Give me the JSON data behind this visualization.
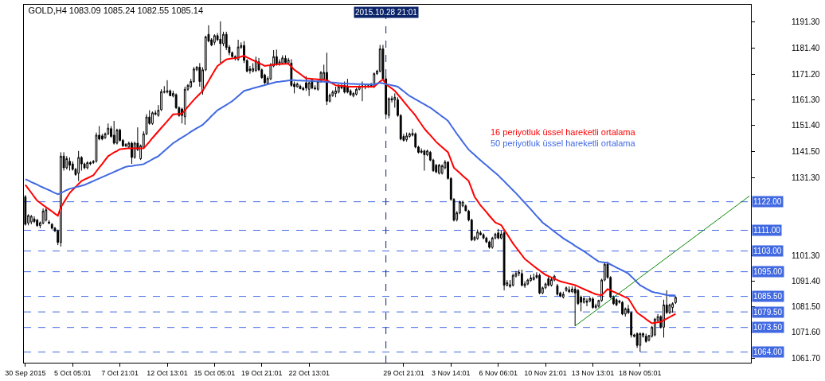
{
  "chart_data": {
    "type": "candlestick",
    "title": "GOLD,H4 1083.09 1085.24 1082.55 1085.14",
    "color": "#000000",
    "grid": false,
    "categories": [
      "30 Sep 2015",
      null,
      null,
      null,
      null,
      null,
      null,
      null,
      null,
      null,
      null,
      null,
      null,
      null,
      null,
      null,
      "5 Oct 05:01",
      null,
      null,
      null,
      null,
      null,
      null,
      null,
      null,
      null,
      null,
      null,
      null,
      null,
      null,
      null,
      "7 Oct 21:01",
      null,
      null,
      null,
      null,
      null,
      null,
      null,
      null,
      null,
      null,
      null,
      null,
      null,
      null,
      null,
      "12 Oct 13:01",
      null,
      null,
      null,
      null,
      null,
      null,
      null,
      null,
      null,
      null,
      null,
      null,
      null,
      null,
      null,
      "15 Oct 05:01",
      null,
      null,
      null,
      null,
      null,
      null,
      null,
      null,
      null,
      null,
      null,
      null,
      null,
      null,
      null,
      "19 Oct 21:01",
      null,
      null,
      null,
      null,
      null,
      null,
      null,
      null,
      null,
      null,
      null,
      null,
      null,
      null,
      null,
      "22 Oct 13:01",
      null,
      null,
      null,
      null,
      null,
      null,
      null,
      null,
      null,
      null,
      null,
      null,
      null,
      null,
      null,
      null,
      null,
      null,
      null,
      null,
      null,
      null,
      null,
      null,
      null,
      "2015.10.28 21:01",
      null,
      null,
      null,
      null,
      null,
      "29 Oct 21:01",
      null,
      null,
      null,
      null,
      null,
      null,
      null,
      null,
      null,
      null,
      null,
      null,
      null,
      null,
      null,
      "3 Nov 14:01",
      null,
      null,
      null,
      null,
      null,
      null,
      null,
      null,
      null,
      null,
      null,
      null,
      null,
      null,
      null,
      "6 Nov 06:01",
      null,
      null,
      null,
      null,
      null,
      null,
      null,
      null,
      null,
      null,
      null,
      null,
      null,
      null,
      null,
      "10 Nov 21:01",
      null,
      null,
      null,
      null,
      null,
      null,
      null,
      null,
      null,
      null,
      null,
      null,
      null,
      null,
      null,
      "13 Nov 13:01",
      null,
      null,
      null,
      null,
      null,
      null,
      null,
      null,
      null,
      null,
      null,
      null,
      null,
      null,
      null,
      "18 Nov 05:01",
      null,
      null,
      null,
      null,
      null,
      null,
      null,
      null,
      null,
      null,
      null,
      null,
      null,
      null,
      null,
      null,
      null,
      null,
      null,
      null,
      null,
      null,
      null,
      null,
      null,
      null,
      null,
      null,
      null,
      null,
      null,
      null,
      null,
      null,
      null,
      null,
      null
    ],
    "ohlc": [
      [
        1123.9,
        1124.6,
        1112.8,
        1113.3
      ],
      [
        1113.8,
        1117.2,
        1112.9,
        1116.7
      ],
      [
        1114.2,
        1116.9,
        1113.3,
        1116.4
      ],
      [
        1115.4,
        1116.4,
        1113.8,
        1114.4
      ],
      [
        1114.9,
        1115.4,
        1112.3,
        1112.8
      ],
      [
        1112.8,
        1114.4,
        1111.8,
        1113.9
      ],
      [
        1113.8,
        1119.4,
        1113.3,
        1118.4
      ],
      [
        1114.9,
        1119.9,
        1114.4,
        1118.9
      ],
      [
        1114.2,
        1114.9,
        1113.3,
        1113.8
      ],
      [
        1113.3,
        1113.8,
        1111.3,
        1111.8
      ],
      [
        1111.8,
        1112.3,
        1110.3,
        1110.8
      ],
      [
        1110.8,
        1111.3,
        1105.3,
        1106.3
      ],
      [
        1106.3,
        1141.1,
        1104.7,
        1139.6
      ],
      [
        1139.6,
        1141.1,
        1134.0,
        1135.1
      ],
      [
        1135.1,
        1139.6,
        1134.5,
        1138.6
      ],
      [
        1137.6,
        1139.1,
        1134.0,
        1136.1
      ],
      [
        1136.6,
        1137.6,
        1134.0,
        1134.5
      ],
      [
        1134.5,
        1135.1,
        1132.0,
        1132.5
      ],
      [
        1133.0,
        1141.6,
        1130.0,
        1139.1
      ],
      [
        1139.1,
        1139.6,
        1134.0,
        1136.6
      ],
      [
        1136.6,
        1137.1,
        1134.5,
        1135.1
      ],
      [
        1135.1,
        1137.6,
        1134.5,
        1137.1
      ],
      [
        1137.1,
        1137.6,
        1136.1,
        1136.6
      ],
      [
        1137.1,
        1138.1,
        1136.6,
        1137.6
      ],
      [
        1137.6,
        1148.7,
        1137.1,
        1147.7
      ],
      [
        1147.7,
        1151.2,
        1145.7,
        1146.2
      ],
      [
        1147.4,
        1148.2,
        1145.7,
        1146.2
      ],
      [
        1146.7,
        1148.7,
        1146.2,
        1148.2
      ],
      [
        1148.2,
        1152.2,
        1147.7,
        1150.4
      ],
      [
        1150.2,
        1151.2,
        1146.7,
        1147.2
      ],
      [
        1147.7,
        1153.2,
        1144.1,
        1144.6
      ],
      [
        1144.6,
        1150.2,
        1144.1,
        1149.7
      ],
      [
        1149.7,
        1150.2,
        1145.2,
        1145.7
      ],
      [
        1145.7,
        1146.2,
        1143.1,
        1143.6
      ],
      [
        1144.1,
        1144.6,
        1143.1,
        1143.6
      ],
      [
        1143.1,
        1145.2,
        1142.6,
        1144.6
      ],
      [
        1144.6,
        1145.2,
        1136.6,
        1139.1
      ],
      [
        1139.1,
        1145.2,
        1138.6,
        1144.6
      ],
      [
        1144.6,
        1150.7,
        1141.6,
        1142.1
      ],
      [
        1138.6,
        1144.1,
        1138.1,
        1143.6
      ],
      [
        1143.1,
        1149.2,
        1142.6,
        1148.2
      ],
      [
        1148.2,
        1155.8,
        1147.7,
        1154.7
      ],
      [
        1154.7,
        1157.3,
        1151.7,
        1152.2
      ],
      [
        1152.2,
        1156.8,
        1151.7,
        1156.3
      ],
      [
        1156.3,
        1157.3,
        1155.3,
        1155.8
      ],
      [
        1155.3,
        1159.3,
        1154.8,
        1157.3
      ],
      [
        1157.5,
        1165.4,
        1157.0,
        1164.5
      ],
      [
        1164.5,
        1166.6,
        1163.8,
        1164.3
      ],
      [
        1164.3,
        1168.9,
        1163.8,
        1164.8
      ],
      [
        1164.8,
        1165.3,
        1162.8,
        1162.9
      ],
      [
        1162.8,
        1164.8,
        1162.3,
        1163.8
      ],
      [
        1163.3,
        1163.8,
        1157.8,
        1158.3
      ],
      [
        1158.3,
        1158.8,
        1154.8,
        1155.3
      ],
      [
        1157.8,
        1158.3,
        1152.2,
        1155.3
      ],
      [
        1154.8,
        1166.4,
        1151.7,
        1165.4
      ],
      [
        1165.4,
        1167.4,
        1164.8,
        1166.9
      ],
      [
        1166.4,
        1169.4,
        1165.9,
        1168.4
      ],
      [
        1168.4,
        1174.0,
        1167.9,
        1173.2
      ],
      [
        1172.9,
        1174.4,
        1172.4,
        1173.9
      ],
      [
        1173.9,
        1175.5,
        1166.4,
        1168.4
      ],
      [
        1164.8,
        1173.9,
        1163.3,
        1172.9
      ],
      [
        1172.9,
        1186.1,
        1172.4,
        1185.6
      ],
      [
        1186.6,
        1190.1,
        1183.5,
        1184.0
      ],
      [
        1184.5,
        1185.1,
        1182.0,
        1182.5
      ],
      [
        1183.5,
        1186.6,
        1182.5,
        1186.1
      ],
      [
        1186.1,
        1187.1,
        1184.0,
        1184.5
      ],
      [
        1184.7,
        1191.6,
        1175.5,
        1183.0
      ],
      [
        1183.0,
        1187.6,
        1182.0,
        1186.6
      ],
      [
        1186.6,
        1187.6,
        1180.5,
        1181.5
      ],
      [
        1181.7,
        1182.5,
        1178.5,
        1179.5
      ],
      [
        1179.5,
        1180.0,
        1177.5,
        1178.0
      ],
      [
        1178.0,
        1178.5,
        1176.5,
        1177.2
      ],
      [
        1176.9,
        1184.5,
        1176.4,
        1181.7
      ],
      [
        1181.5,
        1183.5,
        1181.0,
        1182.3
      ],
      [
        1182.3,
        1184.0,
        1175.5,
        1176.5
      ],
      [
        1176.5,
        1177.0,
        1171.9,
        1172.4
      ],
      [
        1173.2,
        1174.4,
        1171.4,
        1172.6
      ],
      [
        1172.4,
        1175.5,
        1171.9,
        1173.4
      ],
      [
        1172.6,
        1178.0,
        1172.1,
        1176.5
      ],
      [
        1176.0,
        1177.5,
        1172.4,
        1172.9
      ],
      [
        1172.9,
        1173.4,
        1169.4,
        1169.9
      ],
      [
        1170.9,
        1171.4,
        1167.4,
        1167.9
      ],
      [
        1167.6,
        1170.4,
        1167.2,
        1169.6
      ],
      [
        1169.4,
        1175.5,
        1168.9,
        1175.0
      ],
      [
        1174.4,
        1180.5,
        1173.9,
        1178.0
      ],
      [
        1178.0,
        1180.7,
        1174.5,
        1175.0
      ],
      [
        1175.0,
        1177.0,
        1174.5,
        1176.0
      ],
      [
        1175.5,
        1178.5,
        1175.0,
        1177.5
      ],
      [
        1177.3,
        1178.5,
        1175.0,
        1175.7
      ],
      [
        1175.5,
        1177.5,
        1175.0,
        1176.7
      ],
      [
        1175.5,
        1177.0,
        1166.4,
        1166.9
      ],
      [
        1167.4,
        1168.4,
        1163.8,
        1166.4
      ],
      [
        1166.4,
        1168.0,
        1166.0,
        1167.4
      ],
      [
        1166.6,
        1167.2,
        1165.4,
        1165.6
      ],
      [
        1165.8,
        1166.4,
        1164.8,
        1165.3
      ],
      [
        1167.9,
        1170.4,
        1164.8,
        1165.9
      ],
      [
        1165.4,
        1168.4,
        1162.8,
        1167.9
      ],
      [
        1168.9,
        1169.4,
        1165.4,
        1165.9
      ],
      [
        1165.9,
        1166.9,
        1165.1,
        1165.6
      ],
      [
        1165.4,
        1168.9,
        1164.8,
        1168.4
      ],
      [
        1168.4,
        1172.4,
        1167.9,
        1171.9
      ],
      [
        1169.4,
        1174.9,
        1168.9,
        1171.9
      ],
      [
        1171.9,
        1179.5,
        1159.3,
        1160.8
      ],
      [
        1160.8,
        1163.8,
        1160.3,
        1163.1
      ],
      [
        1163.0,
        1165.0,
        1162.5,
        1164.3
      ],
      [
        1163.8,
        1166.4,
        1162.3,
        1164.8
      ],
      [
        1164.3,
        1167.4,
        1163.8,
        1166.4
      ],
      [
        1166.4,
        1167.9,
        1165.4,
        1165.9
      ],
      [
        1166.9,
        1168.4,
        1163.8,
        1164.3
      ],
      [
        1166.4,
        1169.4,
        1163.8,
        1164.3
      ],
      [
        1164.8,
        1165.4,
        1162.8,
        1163.3
      ],
      [
        1162.8,
        1164.3,
        1162.3,
        1163.8
      ],
      [
        1163.5,
        1165.9,
        1163.0,
        1165.4
      ],
      [
        1165.4,
        1166.9,
        1165.0,
        1166.4
      ],
      [
        1166.4,
        1168.4,
        1160.8,
        1166.7
      ],
      [
        1166.7,
        1167.4,
        1165.4,
        1166.2
      ],
      [
        1166.4,
        1167.4,
        1165.9,
        1166.7
      ],
      [
        1166.6,
        1167.9,
        1166.0,
        1166.9
      ],
      [
        1166.4,
        1171.9,
        1165.9,
        1171.4
      ],
      [
        1171.4,
        1172.9,
        1170.9,
        1172.4
      ],
      [
        1172.4,
        1182.5,
        1171.9,
        1181.0
      ],
      [
        1181.0,
        1182.5,
        1168.9,
        1169.4
      ],
      [
        1169.4,
        1170.4,
        1155.3,
        1155.8
      ],
      [
        1155.3,
        1162.3,
        1154.2,
        1161.8
      ],
      [
        1161.8,
        1162.8,
        1160.3,
        1161.3
      ],
      [
        1161.3,
        1163.8,
        1158.3,
        1162.3
      ],
      [
        1161.3,
        1162.3,
        1154.8,
        1155.3
      ],
      [
        1155.3,
        1155.8,
        1145.7,
        1146.2
      ],
      [
        1147.2,
        1148.2,
        1145.2,
        1145.7
      ],
      [
        1146.0,
        1148.7,
        1145.2,
        1147.4
      ],
      [
        1147.2,
        1148.7,
        1146.7,
        1148.2
      ],
      [
        1147.7,
        1150.2,
        1147.2,
        1148.4
      ],
      [
        1148.2,
        1148.7,
        1142.6,
        1143.1
      ],
      [
        1143.1,
        1143.6,
        1140.6,
        1141.1
      ],
      [
        1141.6,
        1142.6,
        1140.6,
        1141.1
      ],
      [
        1141.6,
        1142.1,
        1134.0,
        1140.1
      ],
      [
        1140.1,
        1142.1,
        1139.6,
        1141.6
      ],
      [
        1141.1,
        1141.6,
        1137.6,
        1138.1
      ],
      [
        1138.1,
        1138.6,
        1133.5,
        1134.0
      ],
      [
        1136.1,
        1136.6,
        1133.0,
        1133.5
      ],
      [
        1133.0,
        1136.6,
        1132.5,
        1136.1
      ],
      [
        1133.0,
        1136.4,
        1132.5,
        1135.9
      ],
      [
        1135.1,
        1138.1,
        1134.5,
        1137.3
      ],
      [
        1137.3,
        1137.6,
        1130.5,
        1131.0
      ],
      [
        1131.0,
        1131.5,
        1122.4,
        1122.9
      ],
      [
        1122.9,
        1123.4,
        1114.4,
        1114.9
      ],
      [
        1115.1,
        1118.4,
        1114.4,
        1117.7
      ],
      [
        1117.7,
        1122.4,
        1117.2,
        1121.9
      ],
      [
        1120.4,
        1122.4,
        1119.9,
        1121.9
      ],
      [
        1120.4,
        1120.9,
        1118.4,
        1118.5
      ],
      [
        1118.4,
        1118.9,
        1114.4,
        1115.0
      ],
      [
        1115.0,
        1115.4,
        1106.8,
        1107.3
      ],
      [
        1107.3,
        1108.8,
        1106.8,
        1108.3
      ],
      [
        1107.8,
        1111.3,
        1107.3,
        1110.3
      ],
      [
        1110.0,
        1110.8,
        1109.0,
        1109.3
      ],
      [
        1109.3,
        1109.8,
        1107.5,
        1108.0
      ],
      [
        1108.0,
        1108.5,
        1106.0,
        1106.5
      ],
      [
        1106.5,
        1107.0,
        1103.9,
        1104.4
      ],
      [
        1104.4,
        1108.5,
        1103.9,
        1108.0
      ],
      [
        1108.0,
        1110.0,
        1107.5,
        1109.5
      ],
      [
        1110.0,
        1111.5,
        1107.5,
        1108.0
      ],
      [
        1108.0,
        1110.8,
        1107.5,
        1109.5
      ],
      [
        1110.0,
        1111.0,
        1087.8,
        1089.8
      ],
      [
        1089.8,
        1091.8,
        1089.3,
        1090.8
      ],
      [
        1089.3,
        1091.8,
        1088.8,
        1090.0
      ],
      [
        1089.8,
        1094.3,
        1089.3,
        1093.6
      ],
      [
        1093.3,
        1095.3,
        1092.8,
        1094.3
      ],
      [
        1094.3,
        1095.8,
        1093.3,
        1094.8
      ],
      [
        1094.3,
        1095.8,
        1089.3,
        1089.8
      ],
      [
        1089.6,
        1091.3,
        1088.8,
        1090.3
      ],
      [
        1090.3,
        1092.3,
        1089.8,
        1091.8
      ],
      [
        1091.6,
        1093.8,
        1091.1,
        1092.6
      ],
      [
        1092.0,
        1094.3,
        1091.6,
        1092.8
      ],
      [
        1093.6,
        1094.8,
        1092.3,
        1092.8
      ],
      [
        1093.6,
        1094.3,
        1086.3,
        1086.8
      ],
      [
        1086.8,
        1089.3,
        1086.3,
        1088.8
      ],
      [
        1088.8,
        1090.8,
        1088.3,
        1090.3
      ],
      [
        1092.3,
        1093.3,
        1089.3,
        1089.8
      ],
      [
        1089.8,
        1092.8,
        1089.3,
        1092.0
      ],
      [
        1091.8,
        1093.8,
        1091.3,
        1093.3
      ],
      [
        1089.6,
        1090.3,
        1085.8,
        1086.3
      ],
      [
        1086.8,
        1087.3,
        1085.2,
        1085.6
      ],
      [
        1085.2,
        1087.3,
        1084.7,
        1086.3
      ],
      [
        1087.8,
        1089.3,
        1087.3,
        1088.8
      ],
      [
        1088.0,
        1089.3,
        1086.8,
        1087.3
      ],
      [
        1087.3,
        1089.3,
        1086.8,
        1088.3
      ],
      [
        1088.3,
        1089.3,
        1074.1,
        1086.8
      ],
      [
        1087.8,
        1088.3,
        1082.2,
        1082.7
      ],
      [
        1085.2,
        1085.8,
        1079.7,
        1083.2
      ],
      [
        1083.2,
        1085.2,
        1082.7,
        1084.7
      ],
      [
        1083.7,
        1084.7,
        1081.7,
        1083.2
      ],
      [
        1083.7,
        1085.2,
        1083.2,
        1084.7
      ],
      [
        1084.5,
        1085.2,
        1080.7,
        1081.2
      ],
      [
        1081.2,
        1082.7,
        1080.7,
        1081.9
      ],
      [
        1081.7,
        1084.2,
        1081.2,
        1083.9
      ],
      [
        1083.9,
        1092.3,
        1083.4,
        1091.8
      ],
      [
        1091.8,
        1098.4,
        1091.3,
        1097.9
      ],
      [
        1097.9,
        1098.9,
        1092.3,
        1092.8
      ],
      [
        1092.8,
        1093.3,
        1084.7,
        1085.2
      ],
      [
        1085.2,
        1085.8,
        1082.2,
        1082.7
      ],
      [
        1084.2,
        1084.7,
        1081.7,
        1082.2
      ],
      [
        1083.7,
        1084.2,
        1082.7,
        1083.2
      ],
      [
        1083.2,
        1083.7,
        1078.2,
        1078.7
      ],
      [
        1078.7,
        1081.2,
        1077.7,
        1080.7
      ],
      [
        1080.7,
        1082.2,
        1078.7,
        1079.2
      ],
      [
        1079.2,
        1079.7,
        1069.6,
        1070.6
      ],
      [
        1070.6,
        1071.1,
        1069.6,
        1070.1
      ],
      [
        1071.1,
        1071.6,
        1065.6,
        1066.6
      ],
      [
        1066.6,
        1071.6,
        1064.1,
        1071.1
      ],
      [
        1070.1,
        1071.6,
        1069.6,
        1071.1
      ],
      [
        1070.1,
        1071.1,
        1067.6,
        1068.1
      ],
      [
        1068.6,
        1070.6,
        1068.1,
        1070.4
      ],
      [
        1070.1,
        1074.1,
        1069.6,
        1073.6
      ],
      [
        1070.6,
        1077.2,
        1070.1,
        1076.7
      ],
      [
        1076.2,
        1078.7,
        1075.7,
        1077.7
      ],
      [
        1077.7,
        1078.2,
        1073.1,
        1073.6
      ],
      [
        1073.6,
        1084.2,
        1069.6,
        1082.2
      ],
      [
        1082.2,
        1087.8,
        1078.7,
        1079.2
      ],
      [
        1079.2,
        1082.7,
        1078.7,
        1082.2
      ],
      [
        1081.2,
        1083.2,
        1079.2,
        1082.7
      ],
      [
        1083.09,
        1085.24,
        1082.55,
        1085.14
      ],
      null,
      null,
      null,
      null,
      null,
      null,
      null,
      null,
      null,
      null,
      null,
      null,
      null,
      null,
      null,
      null,
      null,
      null,
      null,
      null,
      null,
      null,
      null,
      null,
      null
    ],
    "series": [
      {
        "type": "line",
        "name": "16 periyotluk üssel hareketli ortalama",
        "color": "#ff0000",
        "values": [
          1128.5,
          1127.0,
          1125.5,
          1123.9,
          1122.4,
          1121.6,
          1120.7,
          1119.9,
          1119.1,
          1118.3,
          1117.4,
          1116.6,
          1119.9,
          1121.7,
          1123.6,
          1125.4,
          1126.6,
          1127.7,
          1128.9,
          1130.0,
          1130.6,
          1131.1,
          1131.7,
          1132.2,
          1133.7,
          1135.2,
          1136.6,
          1138.1,
          1139.6,
          1140.3,
          1141.0,
          1141.6,
          1142.3,
          1142.4,
          1142.5,
          1142.6,
          1142.6,
          1142.6,
          1142.6,
          1142.6,
          1142.6,
          1143.9,
          1145.2,
          1146.6,
          1147.9,
          1149.2,
          1150.5,
          1151.8,
          1153.1,
          1154.4,
          1155.7,
          1155.8,
          1155.9,
          1156.0,
          1157.3,
          1158.7,
          1160.0,
          1161.3,
          1162.5,
          1163.6,
          1164.8,
          1166.7,
          1168.6,
          1170.6,
          1172.5,
          1174.4,
          1175.2,
          1176.1,
          1176.9,
          1177.1,
          1177.3,
          1177.4,
          1177.6,
          1178.0,
          1178.3,
          1177.7,
          1177.2,
          1176.6,
          1176.1,
          1175.5,
          1175.0,
          1174.4,
          1174.6,
          1174.7,
          1174.9,
          1175.0,
          1175.1,
          1175.1,
          1175.2,
          1175.2,
          1174.1,
          1172.9,
          1172.1,
          1171.3,
          1170.4,
          1169.6,
          1169.5,
          1169.4,
          1169.3,
          1169.2,
          1169.1,
          1169.0,
          1168.9,
          1168.2,
          1167.6,
          1166.9,
          1166.8,
          1166.7,
          1166.6,
          1166.5,
          1166.4,
          1166.4,
          1166.4,
          1166.4,
          1166.4,
          1166.4,
          1166.4,
          1166.4,
          1166.4,
          1167.4,
          1168.4,
          1169.2,
          1167.4,
          1166.5,
          1165.7,
          1164.8,
          1163.4,
          1162.1,
          1160.7,
          1159.3,
          1157.9,
          1156.6,
          1155.2,
          1153.5,
          1151.9,
          1150.2,
          1148.9,
          1147.7,
          1146.4,
          1145.1,
          1144.1,
          1143.1,
          1142.1,
          1141.1,
          1138.1,
          1135.1,
          1134.1,
          1133.1,
          1132.0,
          1131.0,
          1130.0,
          1127.0,
          1123.9,
          1122.3,
          1120.6,
          1119.3,
          1118.0,
          1116.6,
          1115.3,
          1114.0,
          1113.5,
          1113.0,
          1111.2,
          1109.5,
          1107.7,
          1105.9,
          1104.4,
          1102.9,
          1101.4,
          1099.9,
          1099.0,
          1098.1,
          1097.2,
          1096.3,
          1095.5,
          1094.6,
          1093.8,
          1093.3,
          1092.8,
          1092.3,
          1091.8,
          1091.3,
          1091.0,
          1090.7,
          1090.4,
          1090.1,
          1089.8,
          1089.3,
          1088.8,
          1088.3,
          1087.8,
          1087.3,
          1086.8,
          1086.3,
          1086.1,
          1085.9,
          1087.1,
          1088.3,
          1087.8,
          1087.3,
          1086.8,
          1086.3,
          1085.7,
          1085.2,
          1084.7,
          1082.9,
          1081.0,
          1079.2,
          1078.4,
          1077.6,
          1076.7,
          1075.9,
          1075.1,
          1075.3,
          1075.5,
          1075.7,
          1076.3,
          1076.9,
          1077.5,
          1078.1,
          1078.7,
          null,
          null,
          null,
          null,
          null,
          null,
          null,
          null,
          null,
          null,
          null,
          null,
          null,
          null,
          null,
          null,
          null,
          null,
          null,
          null,
          null,
          null,
          null,
          null,
          null
        ]
      },
      {
        "type": "line",
        "name": "50 periyotluk üssel hareketli ortalama",
        "color": "#4169e1",
        "values": [
          1130.7,
          1130.2,
          1129.6,
          1129.1,
          1128.6,
          1128.0,
          1127.5,
          1127.0,
          1126.5,
          1125.9,
          1125.4,
          1124.9,
          1125.4,
          1125.9,
          1126.5,
          1127.0,
          1127.3,
          1127.6,
          1127.9,
          1128.2,
          1128.5,
          1129.0,
          1129.5,
          1130.0,
          1130.5,
          1131.0,
          1131.5,
          1132.0,
          1132.5,
          1133.0,
          1133.5,
          1134.0,
          1134.5,
          1135.0,
          1135.5,
          1135.7,
          1135.8,
          1136.0,
          1136.2,
          1136.3,
          1136.5,
          1137.1,
          1137.7,
          1138.4,
          1139.0,
          1139.6,
          1140.6,
          1141.6,
          1142.6,
          1143.6,
          1144.6,
          1145.3,
          1146.1,
          1146.8,
          1147.5,
          1148.2,
          1149.0,
          1149.7,
          1150.4,
          1151.0,
          1151.7,
          1152.8,
          1153.9,
          1155.1,
          1156.2,
          1157.3,
          1158.0,
          1158.7,
          1159.4,
          1160.1,
          1160.8,
          1161.8,
          1162.8,
          1163.8,
          1164.8,
          1165.1,
          1165.4,
          1165.8,
          1166.1,
          1166.4,
          1166.7,
          1167.0,
          1167.3,
          1167.6,
          1167.9,
          1168.2,
          1168.3,
          1168.5,
          1168.6,
          1168.8,
          1168.9,
          1168.9,
          1168.8,
          1168.8,
          1168.7,
          1168.7,
          1168.6,
          1168.6,
          1168.5,
          1168.5,
          1168.4,
          1168.3,
          1168.2,
          1168.1,
          1168.0,
          1167.9,
          1167.8,
          1167.7,
          1167.6,
          1167.6,
          1167.5,
          1167.5,
          1167.4,
          1167.4,
          1167.4,
          1167.3,
          1167.3,
          1167.2,
          1167.2,
          1167.6,
          1167.9,
          1167.7,
          1167.4,
          1167.2,
          1166.9,
          1166.7,
          1166.4,
          1165.5,
          1164.6,
          1163.7,
          1162.8,
          1162.2,
          1161.5,
          1160.9,
          1160.2,
          1159.6,
          1158.9,
          1158.3,
          1157.5,
          1156.6,
          1155.8,
          1154.9,
          1154.1,
          1153.2,
          1151.5,
          1149.9,
          1148.2,
          1146.7,
          1145.1,
          1143.6,
          1142.1,
          1141.1,
          1140.1,
          1139.0,
          1138.0,
          1137.0,
          1136.1,
          1135.1,
          1134.1,
          1133.2,
          1132.2,
          1131.0,
          1129.9,
          1128.7,
          1127.6,
          1126.4,
          1125.3,
          1124.1,
          1122.8,
          1121.6,
          1120.3,
          1119.1,
          1117.8,
          1116.5,
          1115.3,
          1114.0,
          1113.1,
          1112.3,
          1111.4,
          1110.5,
          1109.6,
          1108.8,
          1107.9,
          1107.2,
          1106.5,
          1105.8,
          1105.0,
          1104.3,
          1103.6,
          1102.9,
          1102.1,
          1101.3,
          1100.5,
          1099.7,
          1098.9,
          1098.7,
          1098.6,
          1098.4,
          1097.8,
          1097.2,
          1096.6,
          1096.1,
          1095.5,
          1094.9,
          1094.3,
          1093.2,
          1092.1,
          1090.9,
          1089.8,
          1089.2,
          1088.5,
          1087.9,
          1087.3,
          1087.0,
          1086.8,
          1086.5,
          1086.3,
          1086.0,
          1085.9,
          1085.9,
          1085.8,
          null,
          null,
          null,
          null,
          null,
          null,
          null,
          null,
          null,
          null,
          null,
          null,
          null,
          null,
          null,
          null,
          null,
          null,
          null,
          null,
          null,
          null,
          null,
          null,
          null
        ]
      },
      {
        "type": "line",
        "color": "#008000",
        "values": [
          null,
          null,
          null,
          null,
          null,
          null,
          null,
          null,
          null,
          null,
          null,
          null,
          null,
          null,
          null,
          null,
          null,
          null,
          null,
          null,
          null,
          null,
          null,
          null,
          null,
          null,
          null,
          null,
          null,
          null,
          null,
          null,
          null,
          null,
          null,
          null,
          null,
          null,
          null,
          null,
          null,
          null,
          null,
          null,
          null,
          null,
          null,
          null,
          null,
          null,
          null,
          null,
          null,
          null,
          null,
          null,
          null,
          null,
          null,
          null,
          null,
          null,
          null,
          null,
          null,
          null,
          null,
          null,
          null,
          null,
          null,
          null,
          null,
          null,
          null,
          null,
          null,
          null,
          null,
          null,
          null,
          null,
          null,
          null,
          null,
          null,
          null,
          null,
          null,
          null,
          null,
          null,
          null,
          null,
          null,
          null,
          null,
          null,
          null,
          null,
          null,
          null,
          null,
          null,
          null,
          null,
          null,
          null,
          null,
          null,
          null,
          null,
          null,
          null,
          null,
          null,
          null,
          null,
          null,
          null,
          null,
          null,
          null,
          null,
          null,
          null,
          null,
          null,
          null,
          null,
          null,
          null,
          null,
          null,
          null,
          null,
          null,
          null,
          null,
          null,
          null,
          null,
          null,
          null,
          null,
          null,
          null,
          null,
          null,
          null,
          null,
          null,
          null,
          null,
          null,
          null,
          null,
          null,
          null,
          null,
          null,
          null,
          null,
          null,
          null,
          null,
          null,
          null,
          null,
          null,
          null,
          null,
          null,
          null,
          null,
          null,
          null,
          null,
          null,
          null,
          null,
          null,
          null,
          null,
          null,
          null,
          1074.1,
          1074.9,
          1075.8,
          1076.6,
          1077.5,
          1078.3,
          1079.2,
          1080.0,
          1080.9,
          1081.7,
          1082.6,
          1083.4,
          1084.3,
          1085.1,
          1086.0,
          1086.8,
          1087.7,
          1088.5,
          1089.4,
          1090.2,
          1091.1,
          1091.9,
          1092.8,
          1093.6,
          1094.5,
          1095.3,
          1096.2,
          1097.0,
          1097.9,
          1098.7,
          1099.6,
          1100.4,
          1101.3,
          1102.1,
          1103.0,
          1103.8,
          1104.7,
          1105.5,
          1106.4,
          1107.2,
          1108.1,
          1108.9,
          1109.8,
          1110.6,
          1111.5,
          1112.3,
          1113.2,
          1114.0,
          1114.9,
          1115.7,
          1116.6,
          1117.4,
          1118.3,
          1119.1,
          1120.0,
          1120.8,
          1121.7,
          1122.5,
          1123.4,
          1124.2
        ]
      }
    ],
    "ylim": [
      1059.9,
      1198.0
    ],
    "yticks": [
      {
        "value": 1191.3,
        "label": "1191.30"
      },
      {
        "value": 1181.4,
        "label": "1181.40"
      },
      {
        "value": 1171.2,
        "label": "1171.20"
      },
      {
        "value": 1161.3,
        "label": "1161.30"
      },
      {
        "value": 1151.4,
        "label": "1151.40"
      },
      {
        "value": 1141.5,
        "label": "1141.50"
      },
      {
        "value": 1131.3,
        "label": "1131.30"
      },
      {
        "value": 1101.3,
        "label": "1101.30"
      },
      {
        "value": 1091.4,
        "label": "1091.40"
      },
      {
        "value": 1081.5,
        "label": "1081.50"
      },
      {
        "value": 1071.6,
        "label": "1071.60"
      },
      {
        "value": 1061.7,
        "label": "1061.70"
      }
    ],
    "ref_lines": [
      {
        "axis": "y",
        "value": 1122.0,
        "label": "1122.00",
        "color": "#4169e1",
        "line_style": "dashed"
      },
      {
        "axis": "y",
        "value": 1111.0,
        "label": "1111.00",
        "color": "#4169e1",
        "line_style": "dashed"
      },
      {
        "axis": "y",
        "value": 1103.0,
        "label": "1103.00",
        "color": "#4169e1",
        "line_style": "dashed"
      },
      {
        "axis": "y",
        "value": 1095.0,
        "label": "1095.00",
        "color": "#4169e1",
        "line_style": "dashed"
      },
      {
        "axis": "y",
        "value": 1085.5,
        "label": "1085.50",
        "color": "#4169e1",
        "line_style": "dashed"
      },
      {
        "axis": "y",
        "value": 1079.5,
        "label": "1079.50",
        "color": "#4169e1",
        "line_style": "dashed"
      },
      {
        "axis": "y",
        "value": 1073.5,
        "label": "1073.50",
        "color": "#4169e1",
        "line_style": "dashed"
      },
      {
        "axis": "y",
        "value": 1064.0,
        "label": "1064.00",
        "color": "#4169e1",
        "line_style": "dashed"
      },
      {
        "axis": "x",
        "value": "2015.10.28 21:01",
        "color": "#0a246a",
        "line_style": "dashed"
      }
    ]
  }
}
